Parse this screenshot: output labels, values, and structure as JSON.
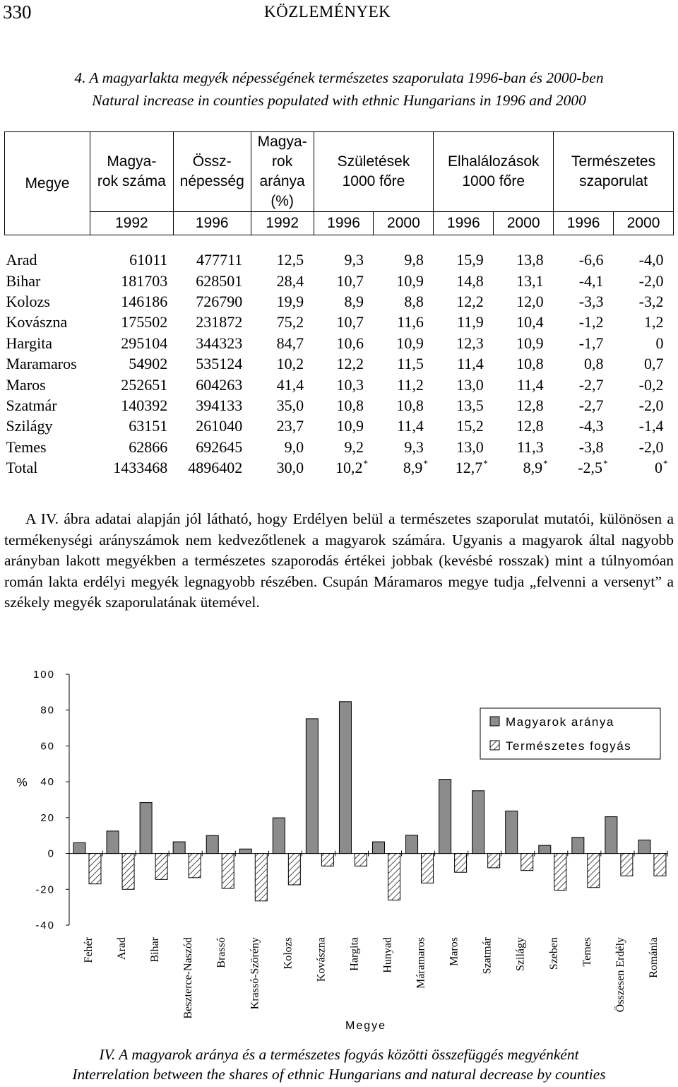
{
  "header": {
    "page_number": "330",
    "title": "KÖZLEMÉNYEK"
  },
  "table_title": {
    "hu": "4. A magyarlakta megyék népességének természetes szaporulata 1996-ban és 2000-ben",
    "en": "Natural increase in counties populated with ethnic Hungarians in 1996 and 2000"
  },
  "table": {
    "headers": {
      "megye": "Megye",
      "magyarok_szama": [
        "Magya-",
        "rok száma"
      ],
      "ossznepesseg": [
        "Össz-",
        "népesség"
      ],
      "magyarok_aranya": [
        "Magya-",
        "rok",
        "aránya",
        "(%)"
      ],
      "szuletesek": [
        "Születések",
        "1000 főre"
      ],
      "elhalalozasok": [
        "Elhalálozások",
        "1000 főre"
      ],
      "termeszetes": [
        "Természetes",
        "szaporulat"
      ]
    },
    "years": [
      "1992",
      "1996",
      "1992",
      "1996",
      "2000",
      "1996",
      "2000",
      "1996",
      "2000"
    ],
    "rows": [
      {
        "county": "Arad",
        "cells": [
          "61011",
          "477711",
          "12,5",
          "9,3",
          "9,8",
          "15,9",
          "13,8",
          "-6,6",
          "-4,0"
        ]
      },
      {
        "county": "Bihar",
        "cells": [
          "181703",
          "628501",
          "28,4",
          "10,7",
          "10,9",
          "14,8",
          "13,1",
          "-4,1",
          "-2,0"
        ]
      },
      {
        "county": "Kolozs",
        "cells": [
          "146186",
          "726790",
          "19,9",
          "8,9",
          "8,8",
          "12,2",
          "12,0",
          "-3,3",
          "-3,2"
        ]
      },
      {
        "county": "Kovászna",
        "cells": [
          "175502",
          "231872",
          "75,2",
          "10,7",
          "11,6",
          "11,9",
          "10,4",
          "-1,2",
          "1,2"
        ]
      },
      {
        "county": "Hargita",
        "cells": [
          "295104",
          "344323",
          "84,7",
          "10,6",
          "10,9",
          "12,3",
          "10,9",
          "-1,7",
          "0"
        ]
      },
      {
        "county": "Maramaros",
        "cells": [
          "54902",
          "535124",
          "10,2",
          "12,2",
          "11,5",
          "11,4",
          "10,8",
          "0,8",
          "0,7"
        ]
      },
      {
        "county": "Maros",
        "cells": [
          "252651",
          "604263",
          "41,4",
          "10,3",
          "11,2",
          "13,0",
          "11,4",
          "-2,7",
          "-0,2"
        ]
      },
      {
        "county": "Szatmár",
        "cells": [
          "140392",
          "394133",
          "35,0",
          "10,8",
          "10,8",
          "13,5",
          "12,8",
          "-2,7",
          "-2,0"
        ]
      },
      {
        "county": "Szilágy",
        "cells": [
          "63151",
          "261040",
          "23,7",
          "10,9",
          "11,4",
          "15,2",
          "12,8",
          "-4,3",
          "-1,4"
        ]
      },
      {
        "county": "Temes",
        "cells": [
          "62866",
          "692645",
          "9,0",
          "9,2",
          "9,3",
          "13,0",
          "11,3",
          "-3,8",
          "-2,0"
        ]
      }
    ],
    "total": {
      "county": "Total",
      "cells": [
        "1433468",
        "4896402",
        "30,0",
        "10,2",
        "8,9",
        "12,7",
        "8,9",
        "-2,5",
        "0"
      ],
      "starred": [
        false,
        false,
        false,
        true,
        true,
        true,
        true,
        true,
        true
      ],
      "star": "*"
    }
  },
  "body_text": "A IV. ábra adatai alapján jól látható, hogy Erdélyen belül a természetes szaporulat mutatói, különösen a termékenységi arányszámok nem kedvezőtlenek a magyarok számára. Ugyanis a magyarok által nagyobb arányban lakott megyékben a természetes szaporodás értékei jobbak (kevésbé rosszak) mint a túlnyomóan román lakta erdélyi megyék legnagyobb részében. Csupán Máramaros megye tudja „felvenni a versenyt” a székely megyék szaporulatának ütemével.",
  "chart_data": {
    "type": "bar",
    "categories": [
      "Fehér",
      "Arad",
      "Bihar",
      "Beszterce-Naszód",
      "Brassó",
      "Krassó-Szörény",
      "Kolozs",
      "Kovászna",
      "Hargita",
      "Hunyad",
      "Máramaros",
      "Maros",
      "Szatmár",
      "Szilágy",
      "Szeben",
      "Temes",
      "Összesen Erdély",
      "Románia"
    ],
    "series": [
      {
        "name": "Magyarok aránya",
        "values": [
          6,
          12.5,
          28.4,
          6.5,
          10,
          2.5,
          19.9,
          75.2,
          84.7,
          6.5,
          10.2,
          41.4,
          35,
          23.7,
          4.5,
          9,
          20.5,
          7.5
        ],
        "pattern": "solid",
        "color": "#8c8c8c"
      },
      {
        "name": "Természetes fogyás",
        "values": [
          -17,
          -20,
          -14.5,
          -13.5,
          -19.5,
          -26.5,
          -17.5,
          -7,
          -7,
          -26,
          -16.5,
          -10.5,
          -8,
          -9.5,
          -20.5,
          -19,
          -12.5,
          -12.5
        ],
        "pattern": "hatched",
        "color": "#ffffff"
      }
    ],
    "ylim": [
      -40,
      100
    ],
    "yticks": [
      "100",
      "80",
      "60",
      "40",
      "20",
      "0",
      "-20",
      "-40"
    ],
    "ylabel": "%",
    "xlabel": "Megye",
    "legend_position": "top-right",
    "grid": false
  },
  "figure_caption": {
    "hu": "IV. A magyarok aránya és a természetes fogyás közötti összefüggés megyénként",
    "en": "Interrelation between the shares of ethnic Hungarians and natural decrease by counties"
  }
}
